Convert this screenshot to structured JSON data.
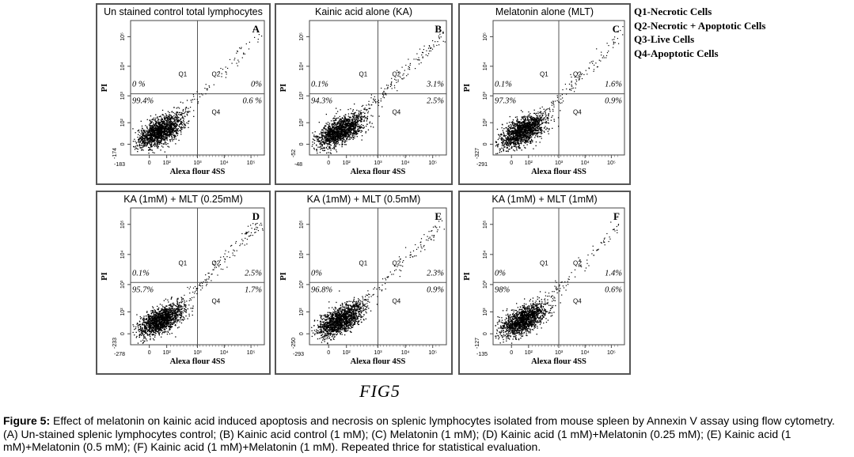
{
  "legend": [
    "Q1-Necrotic Cells",
    "Q2-Necrotic + Apoptotic Cells",
    "Q3-Live Cells",
    "Q4-Apoptotic Cells"
  ],
  "figure_label": "FIG5",
  "caption": {
    "label": "Figure 5:",
    "text": " Effect of melatonin on kainic acid induced apoptosis and necrosis on splenic lymphocytes isolated from mouse spleen by Annexin V assay using flow cytometry. (A) Un-stained splenic lymphocytes control; (B) Kainic acid control (1 mM); (C) Melatonin (1 mM); (D) Kainic acid (1 mM)+Melatonin (0.25 mM); (E) Kainic acid (1 mM)+Melatonin (0.5 mM); (F) Kainic acid (1 mM)+Melatonin (1 mM). Repeated thrice for statistical evaluation."
  },
  "chart_data": [
    {
      "type": "scatter",
      "title": "Un stained control total lymphocytes",
      "panel_letter": "A",
      "xlabel": "Alexa flour 4SS",
      "ylabel": "PI",
      "x_min_label": "-183",
      "y_min_label": "-174",
      "quadrant_names": [
        "Q1",
        "Q2",
        "Q3",
        "Q4"
      ],
      "quadrants": {
        "Q1": "0 %",
        "Q2": "0%",
        "Q3": "99.4%",
        "Q4": "0.6 %"
      },
      "spread": 0.55
    },
    {
      "type": "scatter",
      "title": "Kainic acid alone (KA)",
      "panel_letter": "B",
      "xlabel": "Alexa flour 4SS",
      "ylabel": "PI",
      "x_min_label": "-48",
      "y_min_label": "-52",
      "quadrant_names": [
        "Q1",
        "Q2",
        "Q3",
        "Q4"
      ],
      "quadrants": {
        "Q1": "0.1%",
        "Q2": "3.1%",
        "Q3": "94.3%",
        "Q4": "2.5%"
      },
      "spread": 1.0
    },
    {
      "type": "scatter",
      "title": "Melatonin alone (MLT)",
      "panel_letter": "C",
      "xlabel": "Alexa flour 4SS",
      "ylabel": "PI",
      "x_min_label": "-291",
      "y_min_label": "-327",
      "quadrant_names": [
        "Q1",
        "Q2",
        "Q3",
        "Q4"
      ],
      "quadrants": {
        "Q1": "0.1%",
        "Q2": "1.6%",
        "Q3": "97.3%",
        "Q4": "0.9%"
      },
      "spread": 0.75
    },
    {
      "type": "scatter",
      "title": "KA (1mM) + MLT (0.25mM)",
      "panel_letter": "D",
      "xlabel": "Alexa flour 4SS",
      "ylabel": "PI",
      "x_min_label": "-278",
      "y_min_label": "-233",
      "quadrant_names": [
        "Q1",
        "Q2",
        "Q3",
        "Q4"
      ],
      "quadrants": {
        "Q1": "0.1%",
        "Q2": "2.5%",
        "Q3": "95.7%",
        "Q4": "1.7%"
      },
      "spread": 0.9
    },
    {
      "type": "scatter",
      "title": "KA (1mM) + MLT (0.5mM)",
      "panel_letter": "E",
      "xlabel": "Alexa flour 4SS",
      "ylabel": "PI",
      "x_min_label": "-293",
      "y_min_label": "-250",
      "quadrant_names": [
        "Q1",
        "Q2",
        "Q3",
        "Q4"
      ],
      "quadrants": {
        "Q1": "0%",
        "Q2": "2.3%",
        "Q3": "96.8%",
        "Q4": "0.9%"
      },
      "spread": 0.8
    },
    {
      "type": "scatter",
      "title": "KA (1mM) + MLT (1mM)",
      "panel_letter": "F",
      "xlabel": "Alexa flour 4SS",
      "ylabel": "PI",
      "x_min_label": "-135",
      "y_min_label": "-127",
      "quadrant_names": [
        "Q1",
        "Q2",
        "Q3",
        "Q4"
      ],
      "quadrants": {
        "Q1": "0%",
        "Q2": "1.4%",
        "Q3": "98%",
        "Q4": "0.6%"
      },
      "spread": 0.7
    }
  ],
  "axis_ticks": {
    "x": [
      "0",
      "10²",
      "10³",
      "10⁴",
      "10⁵"
    ],
    "y": [
      "0",
      "10²",
      "10³",
      "10⁴",
      "10⁵"
    ]
  }
}
